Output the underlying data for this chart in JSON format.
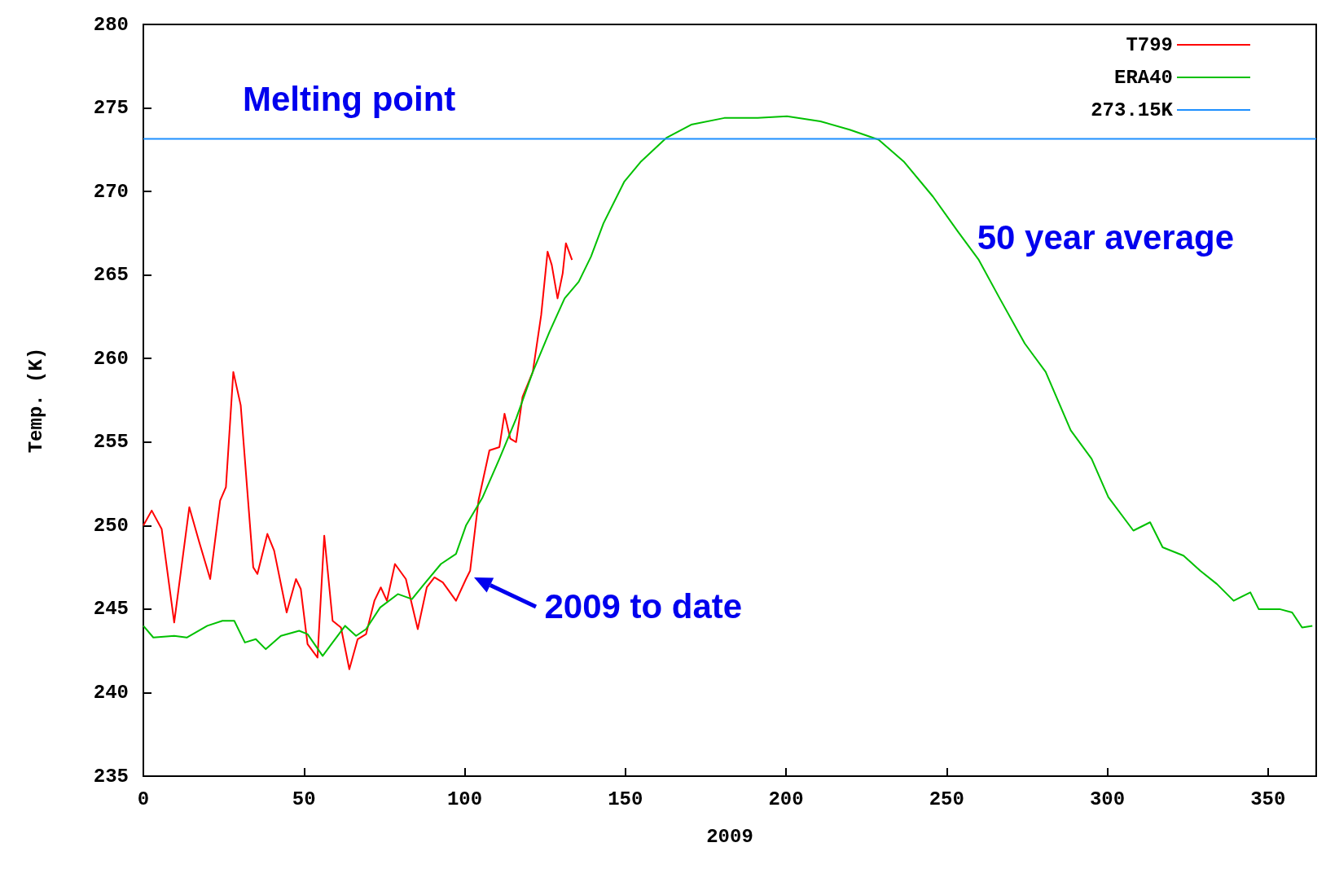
{
  "chart_data": {
    "type": "line",
    "xlabel": "2009",
    "ylabel": "Temp. (K)",
    "xlim": [
      0,
      365
    ],
    "xticks": [
      0,
      50,
      100,
      150,
      200,
      250,
      300,
      350
    ],
    "ylim": [
      235,
      280
    ],
    "yticks": [
      235,
      240,
      245,
      250,
      255,
      260,
      265,
      270,
      275,
      280
    ],
    "grid": false,
    "legend": "top right",
    "line_style": "solid",
    "annotations": [
      "Melting point",
      "50 year average",
      {
        "text": "2009 to date",
        "x": 102,
        "y": 247
      }
    ],
    "series": [
      {
        "name": "T799",
        "color": "#ff0000",
        "x": [
          0,
          2.6,
          5.7,
          9.6,
          14.3,
          17.4,
          20.8,
          23.9,
          25.7,
          28,
          30.3,
          34.2,
          35.5,
          38.6,
          40.7,
          44.6,
          47.5,
          49,
          51.1,
          54.2,
          56.3,
          58.9,
          61.5,
          64.1,
          66.7,
          69.3,
          71.9,
          73.9,
          75.8,
          78.3,
          81.7,
          85.4,
          88.2,
          90.6,
          93.2,
          97.3,
          100.4,
          101.7,
          104.3,
          107.7,
          110.8,
          112.4,
          114.2,
          116,
          118,
          121.2,
          123.8,
          125.8,
          127.1,
          128.9,
          130.5,
          131.5,
          133.4
        ],
        "values": [
          250,
          250.9,
          249.8,
          244.2,
          251.1,
          249,
          246.8,
          251.5,
          252.3,
          259.2,
          257.2,
          247.5,
          247.1,
          249.5,
          248.5,
          244.8,
          246.8,
          246.2,
          242.9,
          242.1,
          249.4,
          244.3,
          243.9,
          241.4,
          243.2,
          243.5,
          245.5,
          246.3,
          245.5,
          247.7,
          246.8,
          243.8,
          246.3,
          246.9,
          246.6,
          245.5,
          246.8,
          247.3,
          251.5,
          254.5,
          254.7,
          256.7,
          255.2,
          255,
          257.7,
          259.2,
          262.6,
          266.4,
          265.6,
          263.6,
          265.1,
          266.9,
          265.9
        ]
      },
      {
        "name": "ERA40",
        "color": "#00c000",
        "x": [
          0,
          3.1,
          9.6,
          13.5,
          19.9,
          24.6,
          28.3,
          31.6,
          35,
          38.1,
          42.8,
          48.5,
          51.1,
          55.8,
          58.9,
          62.8,
          66.2,
          69.3,
          73.7,
          79.2,
          83.6,
          87.4,
          92.6,
          97.3,
          100.4,
          105.6,
          110.8,
          116,
          121.2,
          126.4,
          131.1,
          135.5,
          139.3,
          143.2,
          149.7,
          154.9,
          162.7,
          170.5,
          180.8,
          191.2,
          200.3,
          210.7,
          219.8,
          228.8,
          236.6,
          245.7,
          253.5,
          260,
          266.5,
          274.3,
          280.8,
          288.6,
          295.1,
          300.3,
          308.1,
          313.3,
          317.2,
          323.7,
          328.9,
          334.1,
          339.3,
          344.5,
          347.1,
          353.6,
          357.5,
          360.6,
          363.8
        ],
        "values": [
          244,
          243.3,
          243.4,
          243.3,
          244,
          244.3,
          244.3,
          243,
          243.2,
          242.6,
          243.4,
          243.7,
          243.5,
          242.2,
          243,
          244,
          243.4,
          243.8,
          245.1,
          245.9,
          245.6,
          246.5,
          247.7,
          248.3,
          250,
          251.7,
          254,
          256.4,
          259.2,
          261.6,
          263.6,
          264.6,
          266.1,
          268.1,
          270.6,
          271.8,
          273.2,
          274,
          274.4,
          274.4,
          274.5,
          274.2,
          273.7,
          273.1,
          271.8,
          269.7,
          267.6,
          265.9,
          263.6,
          260.9,
          259.2,
          255.7,
          254,
          251.7,
          249.7,
          250.2,
          248.7,
          248.2,
          247.3,
          246.5,
          245.5,
          246,
          245,
          245,
          244.8,
          243.9,
          244
        ]
      },
      {
        "name": "273.15K",
        "color": "#1e90ff",
        "x": [
          0,
          365
        ],
        "values": [
          273.15,
          273.15
        ]
      }
    ]
  }
}
